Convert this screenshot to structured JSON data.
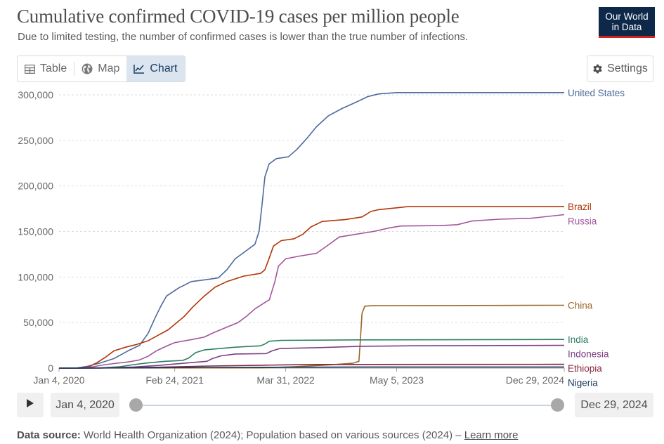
{
  "header": {
    "title": "Cumulative confirmed COVID-19 cases per million people",
    "subtitle": "Due to limited testing, the number of confirmed cases is lower than the true number of infections.",
    "logo_line1": "Our World",
    "logo_line2": "in Data"
  },
  "tabs": [
    {
      "label": "Table",
      "icon": "table-icon",
      "active": false
    },
    {
      "label": "Map",
      "icon": "globe-icon",
      "active": false
    },
    {
      "label": "Chart",
      "icon": "line-chart-icon",
      "active": true
    }
  ],
  "settings_label": "Settings",
  "timeline": {
    "start_label": "Jan 4, 2020",
    "end_label": "Dec 29, 2024"
  },
  "footer": {
    "source_label": "Data source:",
    "source_text": "World Health Organization (2024); Population based on various sources (2024) –",
    "learn_more": "Learn more"
  },
  "colors": {
    "logo_bg": "#0d2849",
    "logo_accent": "#ce261e",
    "grid": "#dddddd",
    "tab_active_bg": "#dbe5f0"
  },
  "chart_data": {
    "type": "line",
    "ylim": [
      0,
      300000
    ],
    "y_ticks": [
      {
        "value": 0,
        "label": "0"
      },
      {
        "value": 50000,
        "label": "50,000"
      },
      {
        "value": 100000,
        "label": "100,000"
      },
      {
        "value": 150000,
        "label": "150,000"
      },
      {
        "value": 200000,
        "label": "200,000"
      },
      {
        "value": 250000,
        "label": "250,000"
      },
      {
        "value": 300000,
        "label": "300,000"
      }
    ],
    "x_range": [
      "2020-01-04",
      "2024-12-29"
    ],
    "x_ticks": [
      {
        "value": "2020-01-04",
        "label": "Jan 4, 2020"
      },
      {
        "value": "2021-02-24",
        "label": "Feb 24, 2021"
      },
      {
        "value": "2022-03-31",
        "label": "Mar 31, 2022"
      },
      {
        "value": "2023-05-05",
        "label": "May 5, 2023"
      },
      {
        "value": "2024-12-29",
        "label": "Dec 29, 2024"
      }
    ],
    "grid": "horizontal-dotted",
    "legend": "line-end-labels",
    "series": [
      {
        "name": "United States",
        "color": "#4c6a9c",
        "points": [
          [
            "2020-01-04",
            0
          ],
          [
            "2020-03-10",
            200
          ],
          [
            "2020-04-15",
            2000
          ],
          [
            "2020-05-30",
            5500
          ],
          [
            "2020-07-20",
            10500
          ],
          [
            "2020-09-15",
            20000
          ],
          [
            "2020-10-20",
            25000
          ],
          [
            "2020-11-20",
            38000
          ],
          [
            "2020-12-15",
            55000
          ],
          [
            "2021-01-05",
            68000
          ],
          [
            "2021-01-25",
            79000
          ],
          [
            "2021-03-10",
            88000
          ],
          [
            "2021-04-25",
            95000
          ],
          [
            "2021-06-15",
            97000
          ],
          [
            "2021-07-31",
            99000
          ],
          [
            "2021-08-31",
            108000
          ],
          [
            "2021-09-30",
            120000
          ],
          [
            "2021-11-05",
            128000
          ],
          [
            "2021-12-10",
            136000
          ],
          [
            "2021-12-25",
            150000
          ],
          [
            "2022-01-05",
            180000
          ],
          [
            "2022-01-15",
            210000
          ],
          [
            "2022-01-30",
            224000
          ],
          [
            "2022-02-25",
            230000
          ],
          [
            "2022-04-10",
            232000
          ],
          [
            "2022-05-10",
            240000
          ],
          [
            "2022-06-15",
            252000
          ],
          [
            "2022-07-20",
            265000
          ],
          [
            "2022-09-01",
            277000
          ],
          [
            "2022-10-20",
            285000
          ],
          [
            "2022-12-10",
            292000
          ],
          [
            "2023-01-20",
            298000
          ],
          [
            "2023-03-01",
            301000
          ],
          [
            "2023-05-05",
            302500
          ],
          [
            "2024-12-29",
            302500
          ]
        ]
      },
      {
        "name": "Brazil",
        "color": "#b13507",
        "points": [
          [
            "2020-01-04",
            0
          ],
          [
            "2020-03-20",
            0
          ],
          [
            "2020-04-20",
            1500
          ],
          [
            "2020-05-20",
            6000
          ],
          [
            "2020-06-20",
            12000
          ],
          [
            "2020-07-20",
            19000
          ],
          [
            "2020-08-31",
            23000
          ],
          [
            "2020-10-10",
            26000
          ],
          [
            "2020-11-20",
            30000
          ],
          [
            "2020-12-20",
            35000
          ],
          [
            "2021-01-31",
            42000
          ],
          [
            "2021-02-24",
            48000
          ],
          [
            "2021-03-31",
            57000
          ],
          [
            "2021-04-30",
            67000
          ],
          [
            "2021-06-10",
            79000
          ],
          [
            "2021-07-20",
            89000
          ],
          [
            "2021-08-31",
            95000
          ],
          [
            "2021-10-31",
            101000
          ],
          [
            "2021-12-31",
            104000
          ],
          [
            "2022-01-15",
            108000
          ],
          [
            "2022-02-01",
            122000
          ],
          [
            "2022-02-15",
            134000
          ],
          [
            "2022-03-15",
            140000
          ],
          [
            "2022-04-30",
            142000
          ],
          [
            "2022-06-01",
            147000
          ],
          [
            "2022-06-30",
            155000
          ],
          [
            "2022-08-10",
            161000
          ],
          [
            "2022-10-31",
            163000
          ],
          [
            "2022-12-31",
            166000
          ],
          [
            "2023-02-01",
            172000
          ],
          [
            "2023-03-01",
            174000
          ],
          [
            "2023-05-05",
            176000
          ],
          [
            "2023-06-15",
            177300
          ],
          [
            "2024-12-29",
            177300
          ]
        ]
      },
      {
        "name": "Russia",
        "color": "#a2559c",
        "points": [
          [
            "2020-01-04",
            0
          ],
          [
            "2020-03-31",
            200
          ],
          [
            "2020-05-05",
            1500
          ],
          [
            "2020-06-10",
            3500
          ],
          [
            "2020-07-20",
            5000
          ],
          [
            "2020-09-15",
            7000
          ],
          [
            "2020-10-20",
            9000
          ],
          [
            "2020-11-20",
            13000
          ],
          [
            "2020-12-20",
            19000
          ],
          [
            "2021-01-31",
            25000
          ],
          [
            "2021-02-24",
            28000
          ],
          [
            "2021-04-20",
            31000
          ],
          [
            "2021-06-10",
            34000
          ],
          [
            "2021-07-15",
            39000
          ],
          [
            "2021-08-31",
            45000
          ],
          [
            "2021-10-10",
            50000
          ],
          [
            "2021-11-10",
            57000
          ],
          [
            "2021-12-10",
            65000
          ],
          [
            "2022-01-15",
            72000
          ],
          [
            "2022-01-31",
            75000
          ],
          [
            "2022-02-20",
            95000
          ],
          [
            "2022-03-05",
            112000
          ],
          [
            "2022-03-31",
            120000
          ],
          [
            "2022-05-20",
            123000
          ],
          [
            "2022-07-20",
            126000
          ],
          [
            "2022-08-31",
            135000
          ],
          [
            "2022-10-10",
            144000
          ],
          [
            "2022-12-10",
            147000
          ],
          [
            "2023-02-10",
            150000
          ],
          [
            "2023-04-10",
            154000
          ],
          [
            "2023-05-20",
            156000
          ],
          [
            "2023-10-10",
            156500
          ],
          [
            "2023-12-10",
            157500
          ],
          [
            "2024-01-31",
            161500
          ],
          [
            "2024-05-10",
            163500
          ],
          [
            "2024-08-31",
            164500
          ],
          [
            "2024-12-29",
            168500
          ]
        ]
      },
      {
        "name": "China",
        "color": "#99662a",
        "points": [
          [
            "2020-01-04",
            0
          ],
          [
            "2020-02-20",
            60
          ],
          [
            "2021-12-31",
            300
          ],
          [
            "2022-04-30",
            1500
          ],
          [
            "2022-08-31",
            3500
          ],
          [
            "2022-11-30",
            5500
          ],
          [
            "2022-12-20",
            7500
          ],
          [
            "2022-12-25",
            30000
          ],
          [
            "2022-12-31",
            60000
          ],
          [
            "2023-01-10",
            68000
          ],
          [
            "2023-02-01",
            68500
          ],
          [
            "2024-12-29",
            69000
          ]
        ]
      },
      {
        "name": "India",
        "color": "#2c7e62",
        "points": [
          [
            "2020-01-04",
            0
          ],
          [
            "2020-05-31",
            200
          ],
          [
            "2020-08-10",
            1500
          ],
          [
            "2020-09-20",
            3500
          ],
          [
            "2020-11-10",
            5500
          ],
          [
            "2021-01-20",
            7500
          ],
          [
            "2021-03-25",
            8500
          ],
          [
            "2021-04-15",
            11000
          ],
          [
            "2021-05-10",
            17000
          ],
          [
            "2021-06-10",
            20000
          ],
          [
            "2021-09-30",
            23000
          ],
          [
            "2021-12-31",
            24500
          ],
          [
            "2022-01-15",
            26500
          ],
          [
            "2022-01-31",
            29500
          ],
          [
            "2022-03-15",
            30500
          ],
          [
            "2022-12-31",
            31000
          ],
          [
            "2024-12-29",
            31500
          ]
        ]
      },
      {
        "name": "Indonesia",
        "color": "#7a3e86",
        "points": [
          [
            "2020-01-04",
            0
          ],
          [
            "2020-05-31",
            100
          ],
          [
            "2020-09-30",
            1200
          ],
          [
            "2020-12-31",
            3000
          ],
          [
            "2021-03-31",
            5500
          ],
          [
            "2021-06-20",
            7500
          ],
          [
            "2021-07-10",
            10500
          ],
          [
            "2021-08-10",
            13500
          ],
          [
            "2021-09-30",
            15500
          ],
          [
            "2022-01-20",
            16000
          ],
          [
            "2022-02-10",
            19000
          ],
          [
            "2022-03-10",
            21500
          ],
          [
            "2022-07-31",
            22500
          ],
          [
            "2022-12-31",
            24000
          ],
          [
            "2023-06-30",
            24500
          ],
          [
            "2024-12-29",
            25000
          ]
        ]
      },
      {
        "name": "Ethiopia",
        "color": "#87283c",
        "points": [
          [
            "2020-01-04",
            0
          ],
          [
            "2020-07-31",
            300
          ],
          [
            "2020-12-31",
            1000
          ],
          [
            "2021-06-30",
            2300
          ],
          [
            "2021-12-31",
            3200
          ],
          [
            "2022-06-30",
            4000
          ],
          [
            "2024-12-29",
            4200
          ]
        ]
      },
      {
        "name": "Nigeria",
        "color": "#17395c",
        "points": [
          [
            "2020-01-04",
            0
          ],
          [
            "2020-12-31",
            400
          ],
          [
            "2021-12-31",
            900
          ],
          [
            "2022-12-31",
            1200
          ],
          [
            "2024-12-29",
            1250
          ]
        ]
      }
    ]
  }
}
